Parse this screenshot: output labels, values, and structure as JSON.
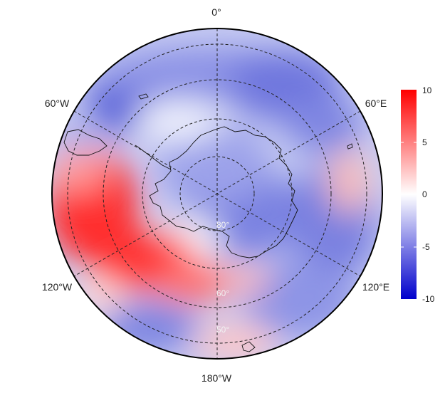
{
  "map": {
    "projection": "south-polar-stereographic",
    "longitude_labels": {
      "top": "0°",
      "upper_left": "60°W",
      "upper_right": "60°E",
      "lower_left": "120°W",
      "lower_right": "120°E",
      "bottom": "180°W"
    },
    "latitude_labels": [
      "80°",
      "60°",
      "50°"
    ],
    "colorbar": {
      "ticks": [
        "10",
        "5",
        "0",
        "-5",
        "-10"
      ],
      "min": -10,
      "max": 10,
      "colors": {
        "max": "#ff0000",
        "mid": "#ffffff",
        "min": "#0000cc"
      }
    }
  }
}
